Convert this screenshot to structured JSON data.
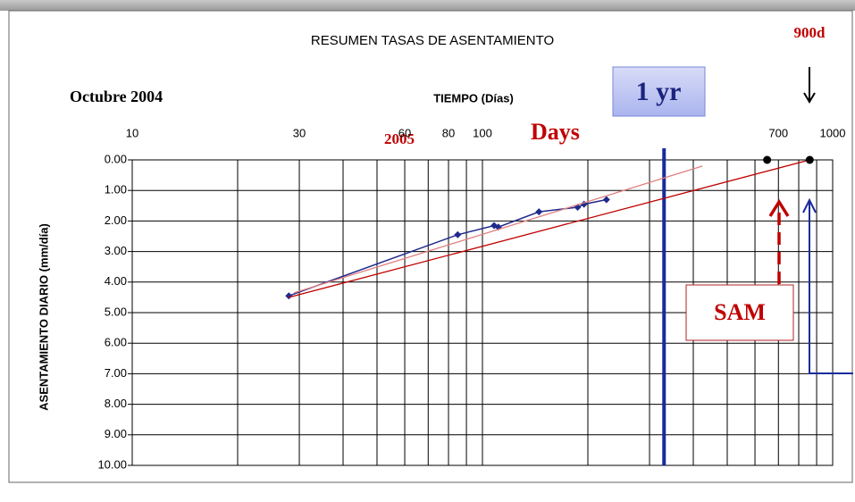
{
  "chart_data": {
    "type": "line",
    "title": "RESUMEN TASAS DE ASENTAMIENTO",
    "xlabel": "TIEMPO (Días)",
    "ylabel": "ASENTAMIENTO DIARIO (mm/día)",
    "xlog": true,
    "yinverted": true,
    "grid": true,
    "xlim": [
      10,
      1000
    ],
    "ylim": [
      0,
      10
    ],
    "xticks": [
      10,
      30,
      60,
      80,
      100,
      700,
      1000
    ],
    "xgrid": [
      10,
      20,
      30,
      40,
      50,
      60,
      70,
      80,
      90,
      100,
      200,
      300,
      400,
      500,
      600,
      700,
      800,
      900,
      1000
    ],
    "yticks": [
      {
        "value": 0,
        "label": "0.00"
      },
      {
        "value": 1,
        "label": "1.00"
      },
      {
        "value": 2,
        "label": "2.00"
      },
      {
        "value": 3,
        "label": "3.00"
      },
      {
        "value": 4,
        "label": "4.00"
      },
      {
        "value": 5,
        "label": "5.00"
      },
      {
        "value": 6,
        "label": "6.00"
      },
      {
        "value": 7,
        "label": "7.00"
      },
      {
        "value": 8,
        "label": "8.00"
      },
      {
        "value": 9,
        "label": "9.00"
      },
      {
        "value": 10,
        "label": "10.00"
      }
    ],
    "series": [
      {
        "color": "#1f2a8c",
        "markers": true,
        "x": [
          28,
          85,
          108,
          111,
          145,
          187,
          195,
          226
        ],
        "values": [
          4.45,
          2.45,
          2.15,
          2.2,
          1.7,
          1.55,
          1.45,
          1.3
        ]
      },
      {
        "color": "#e08080",
        "markers": false,
        "x": [
          29,
          425
        ],
        "values": [
          4.35,
          0.2
        ]
      },
      {
        "color": "#c00000",
        "markers": false,
        "x": [
          28,
          860
        ],
        "values": [
          4.5,
          0
        ]
      }
    ],
    "dots": {
      "x": [
        650,
        860
      ],
      "values": [
        0,
        0
      ]
    },
    "one_year_line": {
      "x": 330,
      "color": "#1a2a9c"
    },
    "annotations": {
      "start": "Octubre 2004",
      "year": "2005",
      "days": "Days",
      "one_year": "1 yr",
      "end": "900d",
      "sam": "SAM"
    }
  }
}
